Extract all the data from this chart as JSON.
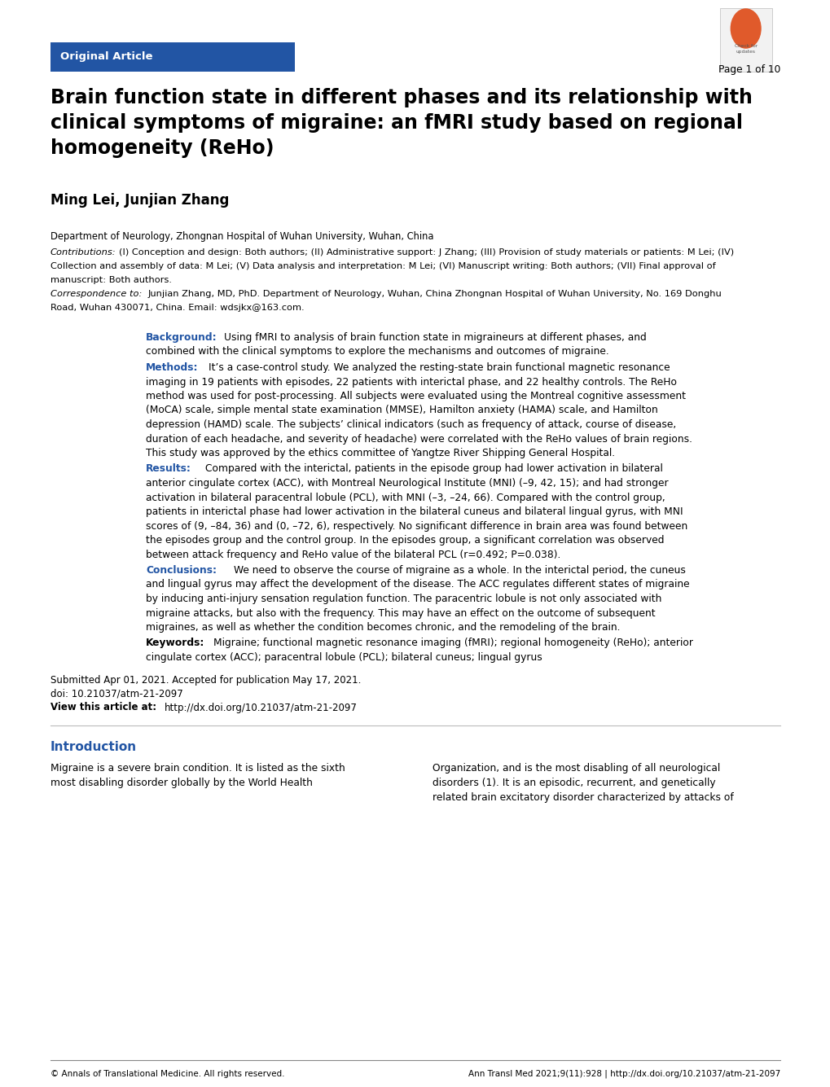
{
  "page_width": 10.2,
  "page_height": 13.35,
  "background_color": "#ffffff",
  "header_bar_color": "#2255a4",
  "header_bar_text": "Original Article",
  "header_bar_text_color": "#ffffff",
  "page_label": "Page 1 of 10",
  "title": "Brain function state in different phases and its relationship with\nclinical symptoms of migraine: an fMRI study based on regional\nhomogeneity (ReHo)",
  "authors": "Ming Lei, Junjian Zhang",
  "affiliation": "Department of Neurology, Zhongnan Hospital of Wuhan University, Wuhan, China",
  "contributions_italic_label": "Contributions:",
  "contributions_text": " (I) Conception and design: Both authors; (II) Administrative support: J Zhang; (III) Provision of study materials or patients: M Lei; (IV) Collection and assembly of data: M Lei; (V) Data analysis and interpretation: M Lei; (VI) Manuscript writing: Both authors; (VII) Final approval of manuscript: Both authors.",
  "correspondence_italic_label": "Correspondence to:",
  "correspondence_text": " Junjian Zhang, MD, PhD. Department of Neurology, Wuhan, China Zhongnan Hospital of Wuhan University, No. 169 Donghu Road, Wuhan 430071, China. Email: wdsjkx@163.com.",
  "background_label": "Background:",
  "background_text_1": "Using fMRI to analysis of brain function state in migraineurs at different phases, and",
  "background_text_2": "combined with the clinical symptoms to explore the mechanisms and outcomes of migraine.",
  "methods_label": "Methods:",
  "methods_text_1": "It’s a case-control study. We analyzed the resting-state brain functional magnetic resonance",
  "methods_lines": [
    "imaging in 19 patients with episodes, 22 patients with interictal phase, and 22 healthy controls. The ReHo",
    "method was used for post-processing. All subjects were evaluated using the Montreal cognitive assessment",
    "(MoCA) scale, simple mental state examination (MMSE), Hamilton anxiety (HAMA) scale, and Hamilton",
    "depression (HAMD) scale. The subjects’ clinical indicators (such as frequency of attack, course of disease,",
    "duration of each headache, and severity of headache) were correlated with the ReHo values of brain regions.",
    "This study was approved by the ethics committee of Yangtze River Shipping General Hospital."
  ],
  "results_label": "Results:",
  "results_text_1": "Compared with the interictal, patients in the episode group had lower activation in bilateral",
  "results_lines": [
    "anterior cingulate cortex (ACC), with Montreal Neurological Institute (MNI) (–9, 42, 15); and had stronger",
    "activation in bilateral paracentral lobule (PCL), with MNI (–3, –24, 66). Compared with the control group,",
    "patients in interictal phase had lower activation in the bilateral cuneus and bilateral lingual gyrus, with MNI",
    "scores of (9, –84, 36) and (0, –72, 6), respectively. No significant difference in brain area was found between",
    "the episodes group and the control group. In the episodes group, a significant correlation was observed",
    "between attack frequency and ReHo value of the bilateral PCL (r=0.492; P=0.038)."
  ],
  "conclusions_label": "Conclusions:",
  "conclusions_text_1": "We need to observe the course of migraine as a whole. In the interictal period, the cuneus",
  "conclusions_lines": [
    "and lingual gyrus may affect the development of the disease. The ACC regulates different states of migraine",
    "by inducing anti-injury sensation regulation function. The paracentric lobule is not only associated with",
    "migraine attacks, but also with the frequency. This may have an effect on the outcome of subsequent",
    "migraines, as well as whether the condition becomes chronic, and the remodeling of the brain."
  ],
  "keywords_label": "Keywords:",
  "keywords_text_1": "Migraine; functional magnetic resonance imaging (fMRI); regional homogeneity (ReHo); anterior",
  "keywords_text_2": "cingulate cortex (ACC); paracentral lobule (PCL); bilateral cuneus; lingual gyrus",
  "submitted_text": "Submitted Apr 01, 2021. Accepted for publication May 17, 2021.",
  "doi_text": "doi: 10.21037/atm-21-2097",
  "view_label": "View this article at:",
  "view_link": "http://dx.doi.org/10.21037/atm-21-2097",
  "intro_label": "Introduction",
  "intro_label_color": "#2255a4",
  "intro_col1_lines": [
    "Migraine is a severe brain condition. It is listed as the sixth",
    "most disabling disorder globally by the World Health"
  ],
  "intro_col2_lines": [
    "Organization, and is the most disabling of all neurological",
    "disorders (1). It is an episodic, recurrent, and genetically",
    "related brain excitatory disorder characterized by attacks of"
  ],
  "footer_left": "© Annals of Translational Medicine. All rights reserved.",
  "footer_right": "Ann Transl Med 2021;9(11):928 | http://dx.doi.org/10.21037/atm-21-2097",
  "label_color": "#2255a4",
  "body_color": "#000000",
  "title_color": "#000000"
}
